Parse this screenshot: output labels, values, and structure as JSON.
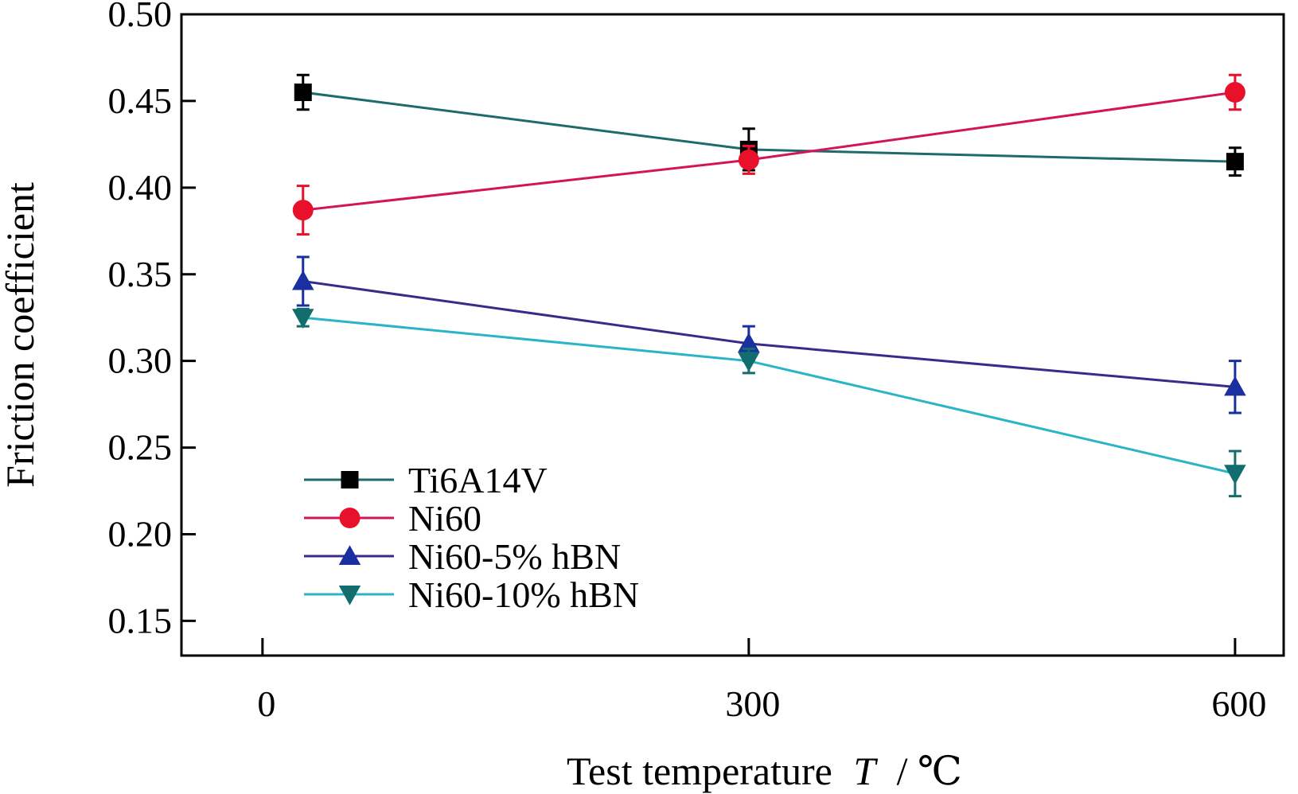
{
  "chart_data": {
    "type": "line",
    "title": "",
    "xlabel": "Test temperature",
    "xlabel_symbol": "T",
    "xlabel_unit": "/ ℃",
    "ylabel": "Friction coefficient",
    "xlim": [
      -50,
      630
    ],
    "ylim": [
      0.13,
      0.5
    ],
    "xticks": [
      0,
      300,
      600
    ],
    "xtick_labels": [
      "0",
      "300",
      "600"
    ],
    "yticks": [
      0.15,
      0.2,
      0.25,
      0.3,
      0.35,
      0.4,
      0.45,
      0.5
    ],
    "ytick_labels": [
      "0.15",
      "0.20",
      "0.25",
      "0.30",
      "0.35",
      "0.40",
      "0.45",
      "0.50"
    ],
    "grid": false,
    "legend_position": "bottom-left",
    "x": [
      25,
      300,
      600
    ],
    "series": [
      {
        "name": "Ti6A14V",
        "marker": "square",
        "marker_color": "#000000",
        "line_color": "#1f6b6b",
        "values": [
          0.455,
          0.422,
          0.415
        ],
        "errors": [
          0.01,
          0.012,
          0.008
        ]
      },
      {
        "name": "Ni60",
        "marker": "circle",
        "marker_color": "#e8102a",
        "line_color": "#d4145a",
        "values": [
          0.387,
          0.416,
          0.455
        ],
        "errors": [
          0.014,
          0.008,
          0.01
        ]
      },
      {
        "name": "Ni60-5% hBN",
        "marker": "triangle-up",
        "marker_color": "#1a2fa0",
        "line_color": "#3a2a8a",
        "values": [
          0.346,
          0.31,
          0.285
        ],
        "errors": [
          0.014,
          0.01,
          0.015
        ]
      },
      {
        "name": "Ni60-10% hBN",
        "marker": "triangle-down",
        "marker_color": "#126e6e",
        "line_color": "#2ab4c8",
        "values": [
          0.325,
          0.3,
          0.235
        ],
        "errors": [
          0.005,
          0.007,
          0.013
        ]
      }
    ]
  }
}
